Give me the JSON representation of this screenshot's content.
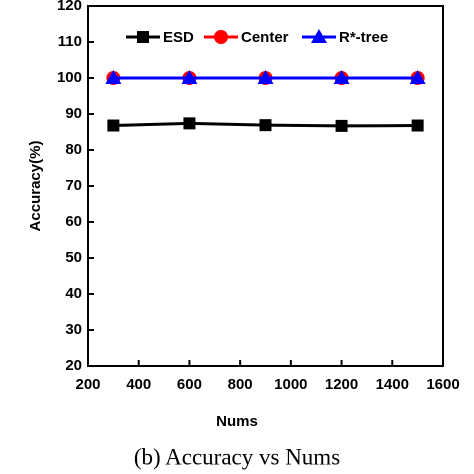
{
  "chart_data": {
    "type": "line",
    "caption": "(b) Accuracy vs Nums",
    "x_label": "Nums",
    "y_label": "Accuracy(%)",
    "x": [
      300,
      600,
      900,
      1200,
      1500
    ],
    "series": [
      {
        "name": "ESD",
        "color": "#000000",
        "marker": "square",
        "values": [
          86.8,
          87.4,
          86.9,
          86.7,
          86.8
        ]
      },
      {
        "name": "Center",
        "color": "#ff0000",
        "marker": "circle",
        "values": [
          100,
          100,
          100,
          100,
          100
        ]
      },
      {
        "name": "R*-tree",
        "color": "#0000ff",
        "marker": "triangle",
        "values": [
          100,
          100,
          100,
          100,
          100
        ]
      }
    ],
    "xlim": [
      200,
      1600
    ],
    "xticks": [
      200,
      400,
      600,
      800,
      1000,
      1200,
      1400,
      1600
    ],
    "ylim": [
      20,
      120
    ],
    "yticks": [
      20,
      30,
      40,
      50,
      60,
      70,
      80,
      90,
      100,
      110,
      120
    ],
    "legend": "top"
  }
}
